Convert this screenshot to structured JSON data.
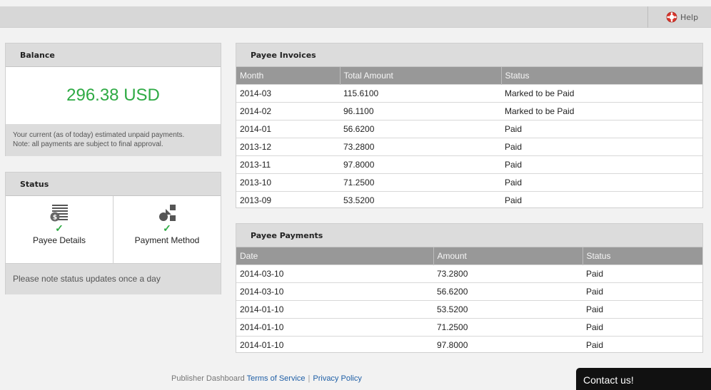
{
  "topbar": {
    "help_label": "Help",
    "help_icon": "lifebuoy-icon"
  },
  "balance": {
    "title": "Balance",
    "amount": "296.38 USD",
    "note_line1": "Your current (as of today) estimated unpaid payments.",
    "note_line2": "Note: all payments are subject to final approval.",
    "amount_color": "#2eaa44"
  },
  "status": {
    "title": "Status",
    "items": [
      {
        "label": "Payee Details",
        "icon": "dollar-document-icon",
        "check": "✓"
      },
      {
        "label": "Payment Method",
        "icon": "shapes-icon",
        "check": "✓"
      }
    ],
    "footer": "Please note status updates once a day"
  },
  "invoices": {
    "title": "Payee Invoices",
    "columns": [
      "Month",
      "Total Amount",
      "Status"
    ],
    "rows": [
      [
        "2014-03",
        "115.6100",
        "Marked to be Paid"
      ],
      [
        "2014-02",
        "96.1100",
        "Marked to be Paid"
      ],
      [
        "2014-01",
        "56.6200",
        "Paid"
      ],
      [
        "2013-12",
        "73.2800",
        "Paid"
      ],
      [
        "2013-11",
        "97.8000",
        "Paid"
      ],
      [
        "2013-10",
        "71.2500",
        "Paid"
      ],
      [
        "2013-09",
        "53.5200",
        "Paid"
      ]
    ]
  },
  "payments": {
    "title": "Payee Payments",
    "columns": [
      "Date",
      "Amount",
      "Status"
    ],
    "rows": [
      [
        "2014-03-10",
        "73.2800",
        "Paid"
      ],
      [
        "2014-03-10",
        "56.6200",
        "Paid"
      ],
      [
        "2014-01-10",
        "53.5200",
        "Paid"
      ],
      [
        "2014-01-10",
        "71.2500",
        "Paid"
      ],
      [
        "2014-01-10",
        "97.8000",
        "Paid"
      ]
    ]
  },
  "footer": {
    "text": "Publisher Dashboard",
    "terms": "Terms of Service",
    "separator": "|",
    "privacy": "Privacy Policy"
  },
  "contact": {
    "label": "Contact us!"
  }
}
